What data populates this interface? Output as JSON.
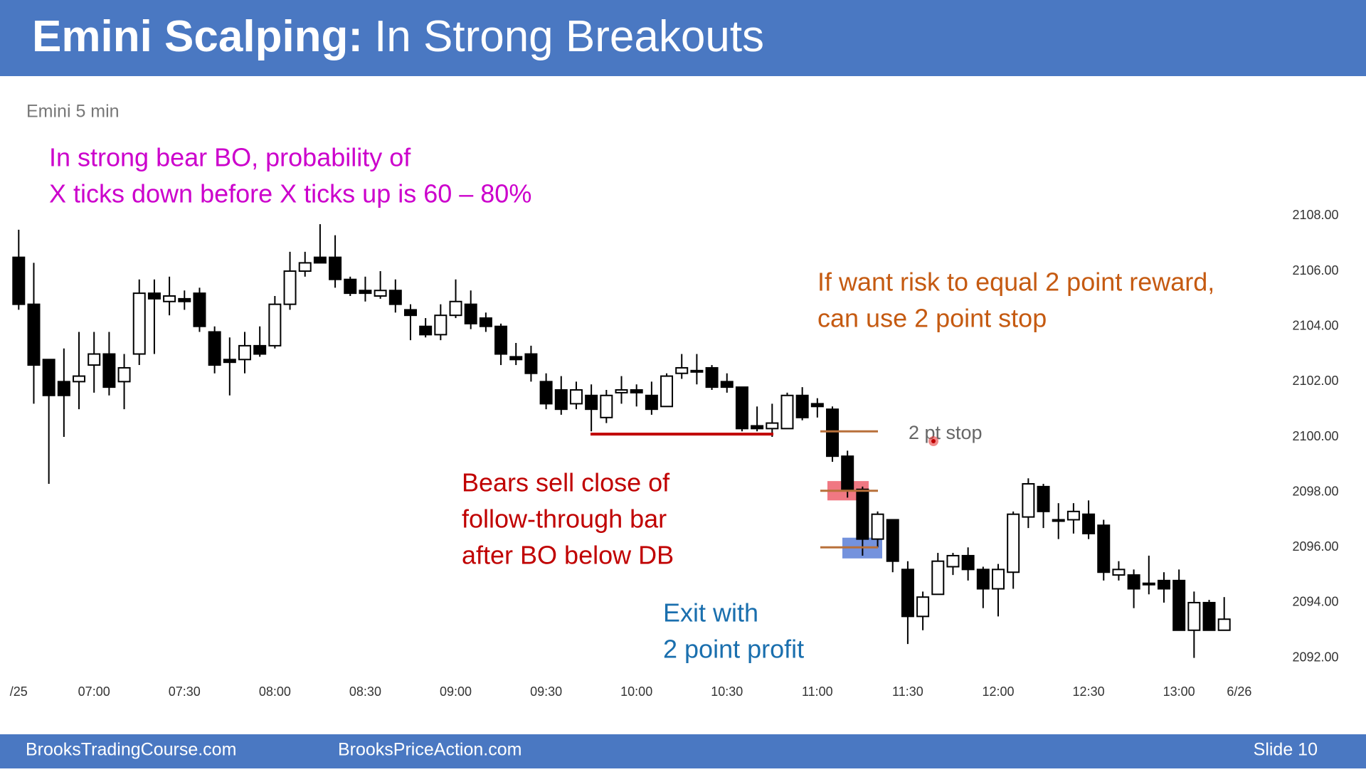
{
  "header": {
    "title_bold": "Emini Scalping:",
    "title_rest": "In Strong Breakouts"
  },
  "footer": {
    "left": "BrooksTradingCourse.com",
    "center": "BrooksPriceAction.com",
    "slide": "Slide  10"
  },
  "chart_data": {
    "type": "candlestick",
    "title": "Emini 5 min",
    "categories": [
      "/25",
      null,
      null,
      null,
      null,
      "07:00",
      null,
      null,
      null,
      null,
      null,
      "07:30",
      null,
      null,
      null,
      null,
      null,
      "08:00",
      null,
      null,
      null,
      null,
      null,
      "08:30",
      null,
      null,
      null,
      null,
      null,
      "09:00",
      null,
      null,
      null,
      null,
      null,
      "09:30",
      null,
      null,
      null,
      null,
      null,
      "10:00",
      null,
      null,
      null,
      null,
      null,
      "10:30",
      null,
      null,
      null,
      null,
      null,
      "11:00",
      null,
      null,
      null,
      null,
      null,
      "11:30",
      null,
      null,
      null,
      null,
      null,
      "12:00",
      null,
      null,
      null,
      null,
      null,
      "12:30",
      null,
      null,
      null,
      null,
      null,
      "13:00",
      null,
      null,
      null
    ],
    "x_end_label": "6/26",
    "open": [
      2106.5,
      2104.8,
      2102.8,
      2102.0,
      2102.0,
      2102.6,
      2103.0,
      2102.0,
      2103.0,
      2105.2,
      2104.9,
      2105.0,
      2105.2,
      2103.8,
      2102.8,
      2102.8,
      2103.3,
      2103.3,
      2104.8,
      2106.0,
      2106.5,
      2106.5,
      2105.7,
      2105.3,
      2105.1,
      2105.3,
      2104.6,
      2104.0,
      2103.7,
      2104.4,
      2104.8,
      2104.3,
      2104.0,
      2102.9,
      2103.0,
      2102.0,
      2101.7,
      2101.2,
      2101.5,
      2100.7,
      2101.6,
      2101.7,
      2101.5,
      2101.1,
      2102.3,
      2102.4,
      2102.5,
      2102.0,
      2101.8,
      2100.4,
      2100.3,
      2100.3,
      2101.5,
      2101.2,
      2101.0,
      2099.3,
      2098.1,
      2096.3,
      2097.0,
      2095.2,
      2093.5,
      2094.3,
      2095.3,
      2095.7,
      2095.2,
      2094.5,
      2095.1,
      2097.1,
      2098.2,
      2097.0,
      2097.0,
      2097.2,
      2096.8,
      2095.0,
      2095.0,
      2094.7,
      2094.8,
      2094.8,
      2093.0,
      2094.0,
      2093.0
    ],
    "high": [
      2107.5,
      2106.3,
      2102.8,
      2103.2,
      2103.8,
      2103.8,
      2103.8,
      2103.0,
      2105.7,
      2105.7,
      2105.8,
      2105.3,
      2105.4,
      2104.0,
      2103.6,
      2103.8,
      2104.0,
      2105.1,
      2106.7,
      2106.7,
      2107.7,
      2107.3,
      2105.8,
      2105.8,
      2106.0,
      2105.7,
      2104.8,
      2104.3,
      2104.8,
      2105.7,
      2105.3,
      2104.5,
      2104.1,
      2103.4,
      2103.3,
      2102.3,
      2102.2,
      2102.0,
      2101.9,
      2101.7,
      2102.2,
      2101.9,
      2102.0,
      2102.3,
      2103.0,
      2103.0,
      2102.6,
      2102.3,
      2101.8,
      2101.1,
      2101.2,
      2101.6,
      2101.8,
      2101.4,
      2101.1,
      2099.5,
      2098.2,
      2097.3,
      2097.0,
      2095.5,
      2094.4,
      2095.8,
      2095.8,
      2096.0,
      2095.3,
      2095.4,
      2097.3,
      2098.5,
      2098.3,
      2097.6,
      2097.6,
      2097.7,
      2097.0,
      2095.5,
      2095.2,
      2095.7,
      2095.1,
      2095.2,
      2094.4,
      2094.1,
      2094.2
    ],
    "low": [
      2104.6,
      2101.2,
      2098.3,
      2100.0,
      2101.0,
      2101.6,
      2101.5,
      2101.0,
      2102.6,
      2103.0,
      2104.4,
      2104.6,
      2103.8,
      2102.3,
      2101.5,
      2102.3,
      2102.9,
      2103.2,
      2104.6,
      2105.8,
      2106.3,
      2105.4,
      2105.1,
      2104.9,
      2105.0,
      2104.5,
      2103.5,
      2103.6,
      2103.5,
      2104.3,
      2103.9,
      2103.8,
      2102.6,
      2102.6,
      2102.0,
      2101.0,
      2100.8,
      2101.0,
      2100.2,
      2100.5,
      2101.2,
      2101.1,
      2100.8,
      2101.1,
      2102.1,
      2101.9,
      2101.7,
      2101.6,
      2100.2,
      2100.2,
      2100.0,
      2100.3,
      2100.6,
      2100.7,
      2099.1,
      2097.8,
      2095.7,
      2096.0,
      2095.1,
      2092.5,
      2093.0,
      2094.3,
      2095.0,
      2094.8,
      2093.8,
      2093.5,
      2094.5,
      2096.7,
      2096.7,
      2096.3,
      2096.5,
      2096.3,
      2094.8,
      2094.8,
      2093.8,
      2094.3,
      2094.0,
      2093.0,
      2092.0,
      2093.0,
      2093.0
    ],
    "close": [
      2104.8,
      2102.6,
      2101.5,
      2101.5,
      2102.2,
      2103.0,
      2101.8,
      2102.5,
      2105.2,
      2105.0,
      2105.1,
      2104.9,
      2104.0,
      2102.6,
      2102.7,
      2103.3,
      2103.0,
      2104.8,
      2106.0,
      2106.3,
      2106.3,
      2105.7,
      2105.2,
      2105.2,
      2105.3,
      2104.8,
      2104.4,
      2103.7,
      2104.4,
      2104.9,
      2104.1,
      2104.0,
      2103.0,
      2102.8,
      2102.3,
      2101.2,
      2101.0,
      2101.7,
      2101.0,
      2101.5,
      2101.7,
      2101.6,
      2101.0,
      2102.2,
      2102.5,
      2102.4,
      2101.8,
      2101.8,
      2100.3,
      2100.3,
      2100.5,
      2101.5,
      2100.7,
      2101.1,
      2099.3,
      2098.1,
      2096.3,
      2097.2,
      2095.5,
      2093.5,
      2094.2,
      2095.5,
      2095.7,
      2095.2,
      2094.5,
      2095.2,
      2097.2,
      2098.3,
      2097.3,
      2097.0,
      2097.3,
      2096.5,
      2095.1,
      2095.2,
      2094.5,
      2094.7,
      2094.5,
      2093.0,
      2094.0,
      2093.0,
      2093.4
    ],
    "ylim": [
      2091.5,
      2108.5
    ],
    "yticks": [
      {
        "value": 2092,
        "label": "2092.00"
      },
      {
        "value": 2094,
        "label": "2094.00"
      },
      {
        "value": 2096,
        "label": "2096.00"
      },
      {
        "value": 2098,
        "label": "2098.00"
      },
      {
        "value": 2100,
        "label": "2100.00"
      },
      {
        "value": 2102,
        "label": "2102.00"
      },
      {
        "value": 2104,
        "label": "2104.00"
      },
      {
        "value": 2106,
        "label": "2106.00"
      },
      {
        "value": 2108,
        "label": "2108.00"
      }
    ],
    "levels": [
      {
        "value": 2100.1,
        "color": "#c00000"
      },
      {
        "value": 2100.2,
        "color": "#b8703a"
      },
      {
        "value": 2098.05,
        "color": "#b8703a"
      },
      {
        "value": 2096.0,
        "color": "#b8703a"
      }
    ],
    "zones": [
      {
        "values": [
          2098.4,
          2097.7
        ],
        "color": "rgba(232,48,63,0.65)"
      },
      {
        "values": [
          2096.35,
          2095.6
        ],
        "color": "rgba(70,110,210,0.75)"
      }
    ],
    "annotations": [
      {
        "lines": [
          "In strong bear BO, probability of",
          "X ticks down before X ticks up is 60 – 80%"
        ],
        "color": "#cc00cc"
      },
      {
        "lines": [
          "If want risk to equal 2 point reward,",
          "can use 2 point stop"
        ],
        "color": "#c55a11"
      },
      {
        "lines": [
          "2 pt stop"
        ],
        "color": "#666666"
      },
      {
        "lines": [
          "Bears sell close of",
          "follow-through bar",
          "after BO below DB"
        ],
        "color": "#c00000"
      },
      {
        "lines": [
          "Exit with",
          "2 point profit"
        ],
        "color": "#1a6fae"
      }
    ]
  }
}
